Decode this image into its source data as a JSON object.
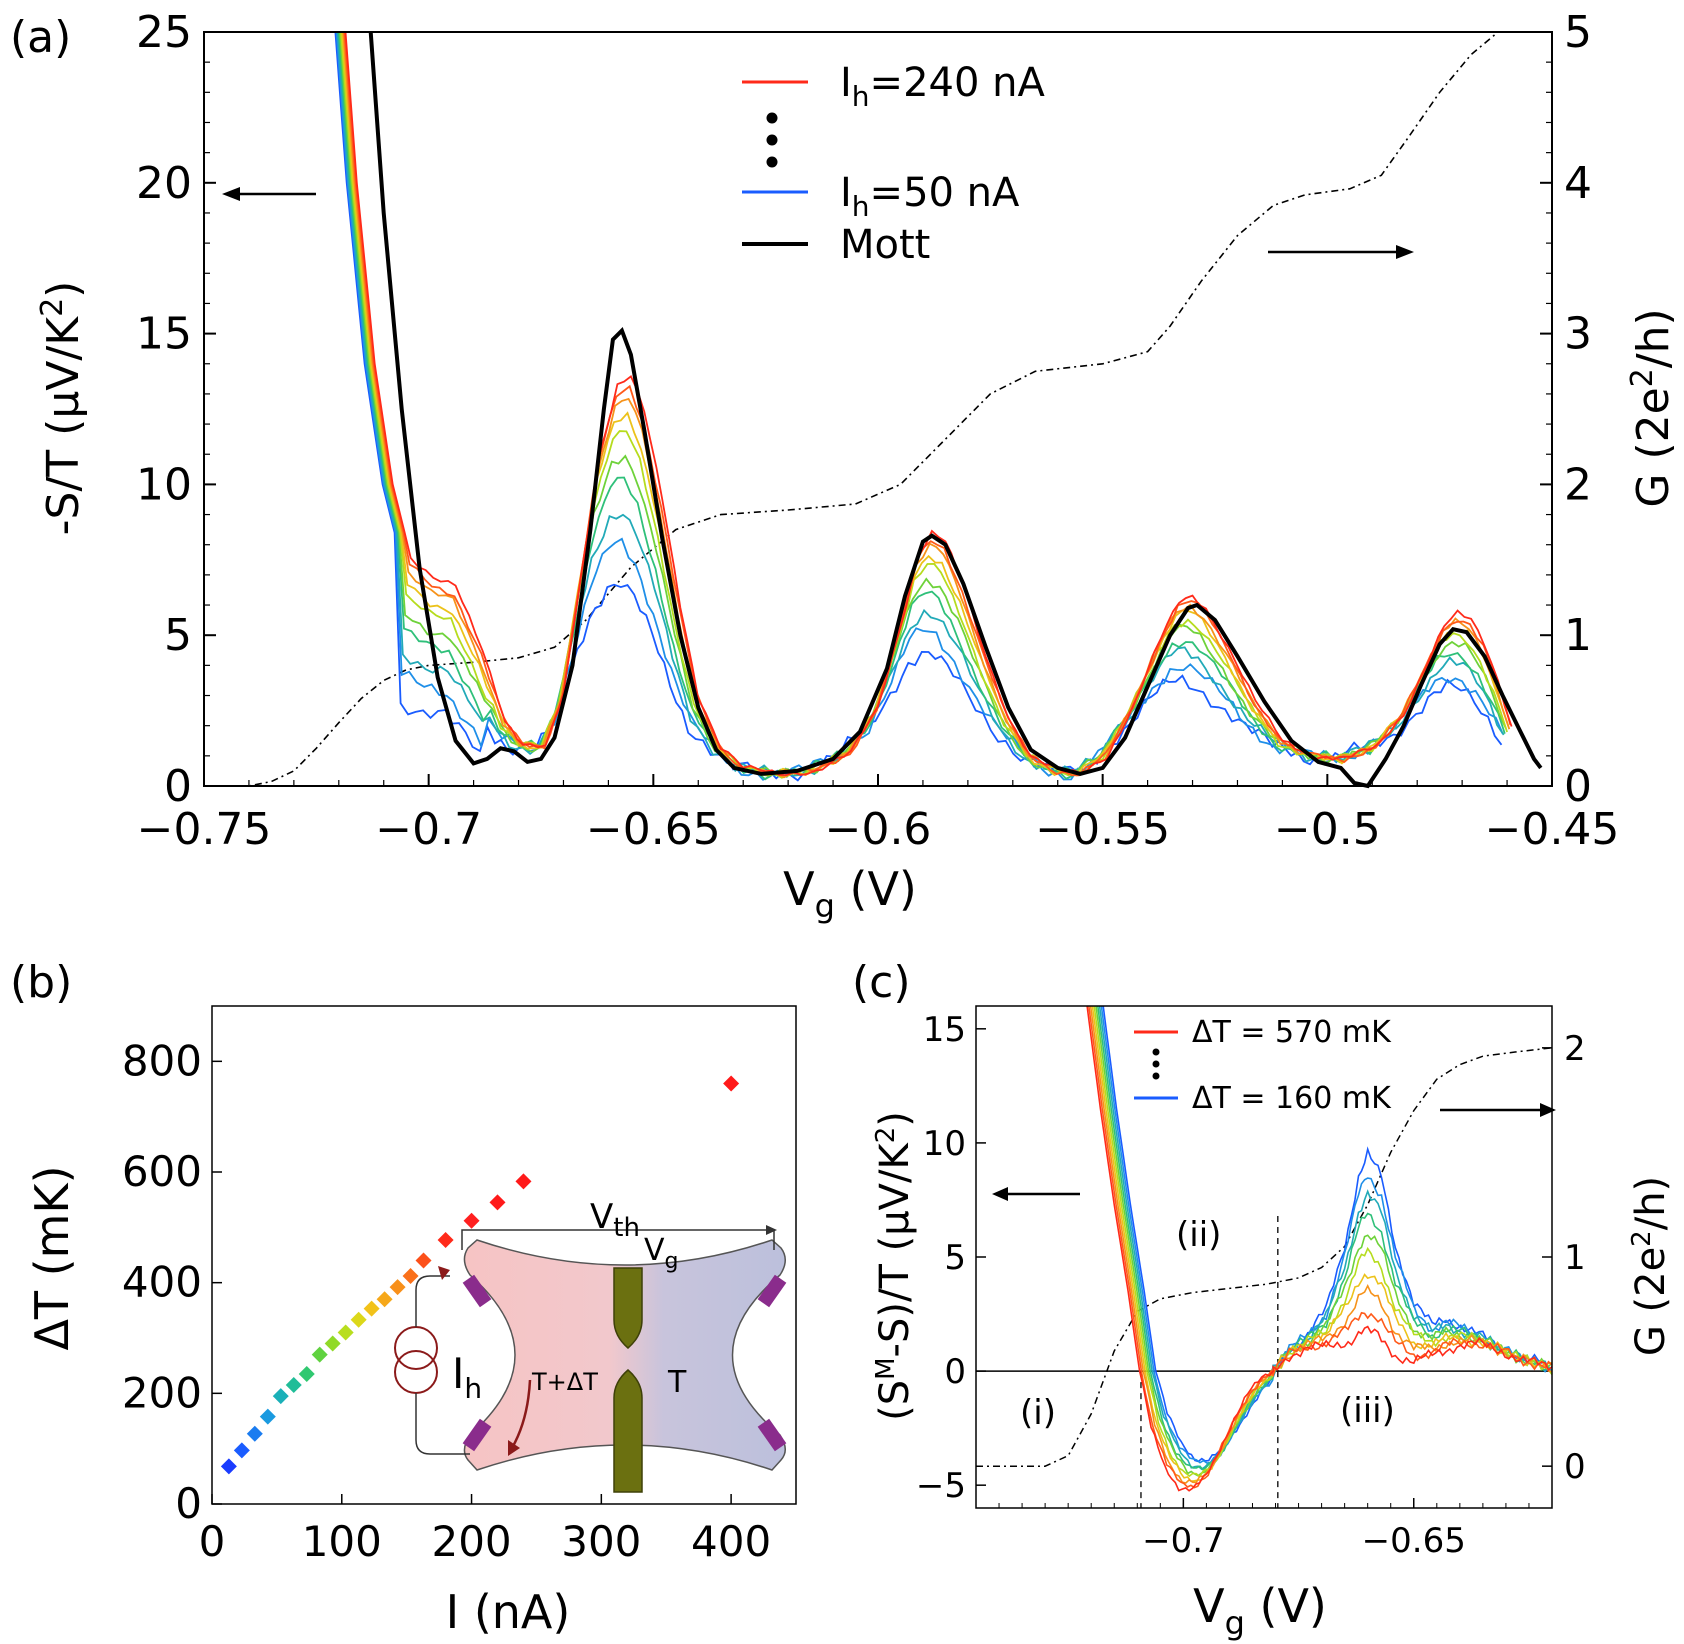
{
  "chart_data": [
    {
      "panel_label": "(a)",
      "type": "line",
      "xlabel": "V",
      "xlabel_sub": "g",
      "xlabel_unit": " (V)",
      "xlim": [
        -0.75,
        -0.45
      ],
      "ylim": [
        0,
        25
      ],
      "ylim_right": [
        0,
        5
      ],
      "xticks": [
        -0.75,
        -0.7,
        -0.65,
        -0.6,
        -0.55,
        -0.5,
        -0.45
      ],
      "xtick_labels": [
        "−0.75",
        "−0.7",
        "−0.65",
        "−0.6",
        "−0.55",
        "−0.5",
        "−0.45"
      ],
      "yticks": [
        0,
        5,
        10,
        15,
        20,
        25
      ],
      "ytick_labels": [
        "0",
        "5",
        "10",
        "15",
        "20",
        "25"
      ],
      "yticks_right": [
        0,
        1,
        2,
        3,
        4,
        5
      ],
      "ytick_labels_right": [
        "0",
        "1",
        "2",
        "3",
        "4",
        "5"
      ],
      "ylabel_left_pre": "-S/T (µV/K",
      "ylabel_left_sup": "2",
      "ylabel_left_post": ")",
      "ylabel_right_pre": "G (2e",
      "ylabel_right_sup": "2",
      "ylabel_right_post": "/h)",
      "legend": [
        {
          "prefix": "I",
          "sub": "h",
          "text": "=240 nA",
          "color": "#ff2a1a"
        },
        {
          "prefix": "I",
          "sub": "h",
          "text": "=50 nA",
          "color": "#1a5cff"
        },
        {
          "prefix": "",
          "sub": "",
          "text": "Mott",
          "color": "#000000"
        }
      ],
      "colors": [
        "#1a5cff",
        "#1f8fe8",
        "#22aab8",
        "#2fc07a",
        "#6ed23a",
        "#b6dc1e",
        "#ecc21a",
        "#f6921a",
        "#ff5a1a",
        "#ff2a1a"
      ],
      "series_scales": [
        0.45,
        0.55,
        0.64,
        0.72,
        0.79,
        0.85,
        0.9,
        0.94,
        0.97,
        1.0
      ],
      "heated_base": [
        [
          -0.7185,
          25
        ],
        [
          -0.716,
          20
        ],
        [
          -0.712,
          14
        ],
        [
          -0.708,
          10
        ],
        [
          -0.704,
          7.6
        ],
        [
          -0.699,
          6.9
        ],
        [
          -0.694,
          6.6
        ],
        [
          -0.688,
          4.5
        ],
        [
          -0.683,
          2.2
        ],
        [
          -0.679,
          1.4
        ],
        [
          -0.674,
          1.3
        ],
        [
          -0.67,
          3.0
        ],
        [
          -0.666,
          7.0
        ],
        [
          -0.662,
          11.0
        ],
        [
          -0.658,
          13.3
        ],
        [
          -0.655,
          13.6
        ],
        [
          -0.652,
          12.4
        ],
        [
          -0.648,
          9.5
        ],
        [
          -0.644,
          6.0
        ],
        [
          -0.64,
          3.0
        ],
        [
          -0.635,
          1.3
        ],
        [
          -0.63,
          0.6
        ],
        [
          -0.622,
          0.4
        ],
        [
          -0.614,
          0.5
        ],
        [
          -0.606,
          1.1
        ],
        [
          -0.6,
          2.6
        ],
        [
          -0.595,
          5.3
        ],
        [
          -0.591,
          7.7
        ],
        [
          -0.588,
          8.4
        ],
        [
          -0.585,
          8.1
        ],
        [
          -0.581,
          6.6
        ],
        [
          -0.576,
          4.3
        ],
        [
          -0.571,
          2.3
        ],
        [
          -0.566,
          1.0
        ],
        [
          -0.56,
          0.5
        ],
        [
          -0.555,
          0.4
        ],
        [
          -0.549,
          1.0
        ],
        [
          -0.543,
          2.7
        ],
        [
          -0.537,
          4.9
        ],
        [
          -0.533,
          6.1
        ],
        [
          -0.53,
          6.3
        ],
        [
          -0.527,
          5.9
        ],
        [
          -0.522,
          4.6
        ],
        [
          -0.516,
          2.8
        ],
        [
          -0.51,
          1.5
        ],
        [
          -0.503,
          1.0
        ],
        [
          -0.496,
          0.9
        ],
        [
          -0.489,
          1.3
        ],
        [
          -0.483,
          2.4
        ],
        [
          -0.478,
          4.0
        ],
        [
          -0.474,
          5.3
        ],
        [
          -0.471,
          5.7
        ],
        [
          -0.468,
          5.5
        ],
        [
          -0.465,
          4.7
        ],
        [
          -0.462,
          3.5
        ],
        [
          -0.459,
          2.0
        ]
      ],
      "mott": [
        [
          -0.7129,
          25
        ],
        [
          -0.71,
          19
        ],
        [
          -0.706,
          12.5
        ],
        [
          -0.702,
          7.2
        ],
        [
          -0.698,
          3.6
        ],
        [
          -0.694,
          1.5
        ],
        [
          -0.69,
          0.75
        ],
        [
          -0.687,
          0.9
        ],
        [
          -0.684,
          1.25
        ],
        [
          -0.681,
          1.15
        ],
        [
          -0.678,
          0.8
        ],
        [
          -0.675,
          0.9
        ],
        [
          -0.672,
          1.6
        ],
        [
          -0.668,
          4.0
        ],
        [
          -0.664,
          8.5
        ],
        [
          -0.661,
          12.5
        ],
        [
          -0.659,
          14.8
        ],
        [
          -0.657,
          15.1
        ],
        [
          -0.655,
          14.3
        ],
        [
          -0.652,
          11.8
        ],
        [
          -0.648,
          8.2
        ],
        [
          -0.644,
          5.0
        ],
        [
          -0.64,
          2.6
        ],
        [
          -0.636,
          1.2
        ],
        [
          -0.632,
          0.6
        ],
        [
          -0.626,
          0.4
        ],
        [
          -0.618,
          0.5
        ],
        [
          -0.61,
          0.9
        ],
        [
          -0.604,
          1.8
        ],
        [
          -0.598,
          3.9
        ],
        [
          -0.594,
          6.3
        ],
        [
          -0.59,
          8.1
        ],
        [
          -0.588,
          8.3
        ],
        [
          -0.585,
          8.0
        ],
        [
          -0.581,
          6.7
        ],
        [
          -0.576,
          4.6
        ],
        [
          -0.571,
          2.6
        ],
        [
          -0.566,
          1.2
        ],
        [
          -0.56,
          0.6
        ],
        [
          -0.555,
          0.4
        ],
        [
          -0.55,
          0.6
        ],
        [
          -0.545,
          1.6
        ],
        [
          -0.54,
          3.3
        ],
        [
          -0.535,
          5.0
        ],
        [
          -0.531,
          5.9
        ],
        [
          -0.529,
          6.0
        ],
        [
          -0.525,
          5.5
        ],
        [
          -0.52,
          4.3
        ],
        [
          -0.514,
          2.8
        ],
        [
          -0.508,
          1.5
        ],
        [
          -0.502,
          0.8
        ],
        [
          -0.497,
          0.6
        ],
        [
          -0.494,
          0.1
        ],
        [
          -0.491,
          0.0
        ],
        [
          -0.487,
          0.9
        ],
        [
          -0.483,
          2.0
        ],
        [
          -0.479,
          3.4
        ],
        [
          -0.475,
          4.7
        ],
        [
          -0.472,
          5.2
        ],
        [
          -0.469,
          5.1
        ],
        [
          -0.465,
          4.3
        ],
        [
          -0.461,
          3.0
        ],
        [
          -0.457,
          1.8
        ],
        [
          -0.454,
          0.9
        ],
        [
          -0.4525,
          0.6
        ]
      ],
      "conductance": [
        [
          -0.75,
          0.0
        ],
        [
          -0.74,
          0.0
        ],
        [
          -0.735,
          0.03
        ],
        [
          -0.73,
          0.1
        ],
        [
          -0.725,
          0.25
        ],
        [
          -0.72,
          0.42
        ],
        [
          -0.715,
          0.58
        ],
        [
          -0.71,
          0.7
        ],
        [
          -0.705,
          0.77
        ],
        [
          -0.7,
          0.8
        ],
        [
          -0.69,
          0.82
        ],
        [
          -0.68,
          0.85
        ],
        [
          -0.672,
          0.92
        ],
        [
          -0.665,
          1.1
        ],
        [
          -0.655,
          1.45
        ],
        [
          -0.645,
          1.7
        ],
        [
          -0.635,
          1.8
        ],
        [
          -0.62,
          1.83
        ],
        [
          -0.605,
          1.87
        ],
        [
          -0.595,
          2.0
        ],
        [
          -0.585,
          2.3
        ],
        [
          -0.575,
          2.6
        ],
        [
          -0.565,
          2.75
        ],
        [
          -0.55,
          2.8
        ],
        [
          -0.54,
          2.88
        ],
        [
          -0.535,
          3.05
        ],
        [
          -0.528,
          3.35
        ],
        [
          -0.52,
          3.65
        ],
        [
          -0.512,
          3.85
        ],
        [
          -0.505,
          3.92
        ],
        [
          -0.495,
          3.96
        ],
        [
          -0.488,
          4.05
        ],
        [
          -0.482,
          4.3
        ],
        [
          -0.475,
          4.6
        ],
        [
          -0.468,
          4.85
        ],
        [
          -0.462,
          5.0
        ]
      ]
    },
    {
      "panel_label": "(b)",
      "type": "scatter",
      "xlabel": "I (nA)",
      "ylabel": "ΔT (mK)",
      "xlim": [
        0,
        450
      ],
      "ylim": [
        0,
        900
      ],
      "xticks": [
        0,
        100,
        200,
        300,
        400
      ],
      "xtick_labels": [
        "0",
        "100",
        "200",
        "300",
        "400"
      ],
      "yticks": [
        0,
        200,
        400,
        600,
        800
      ],
      "ytick_labels": [
        "0",
        "200",
        "400",
        "600",
        "800"
      ],
      "points": [
        {
          "x": 13,
          "y": 68,
          "color": "#1a3cff"
        },
        {
          "x": 23,
          "y": 97,
          "color": "#1a5cff"
        },
        {
          "x": 33,
          "y": 127,
          "color": "#1a7cf0"
        },
        {
          "x": 43,
          "y": 158,
          "color": "#1a9ae0"
        },
        {
          "x": 53,
          "y": 195,
          "color": "#1ab0b8"
        },
        {
          "x": 63,
          "y": 215,
          "color": "#20bd98"
        },
        {
          "x": 73,
          "y": 235,
          "color": "#30c870"
        },
        {
          "x": 83,
          "y": 270,
          "color": "#60d240"
        },
        {
          "x": 93,
          "y": 290,
          "color": "#90da28"
        },
        {
          "x": 103,
          "y": 310,
          "color": "#b8de1e"
        },
        {
          "x": 113,
          "y": 333,
          "color": "#dcd81a"
        },
        {
          "x": 123,
          "y": 353,
          "color": "#f2c21a"
        },
        {
          "x": 133,
          "y": 370,
          "color": "#f6a81a"
        },
        {
          "x": 143,
          "y": 392,
          "color": "#f8901a"
        },
        {
          "x": 153,
          "y": 412,
          "color": "#fa701a"
        },
        {
          "x": 163,
          "y": 440,
          "color": "#fc501a"
        },
        {
          "x": 180,
          "y": 477,
          "color": "#ff2a1a"
        },
        {
          "x": 200,
          "y": 512,
          "color": "#ff2020"
        },
        {
          "x": 220,
          "y": 545,
          "color": "#ff1a1a"
        },
        {
          "x": 240,
          "y": 583,
          "color": "#ff1a1a"
        },
        {
          "x": 400,
          "y": 760,
          "color": "#ff1a1a"
        }
      ],
      "inset": {
        "vth_main": "V",
        "vth_sub": "th",
        "vg_main": "V",
        "vg_sub": "g",
        "ih_main": "I",
        "ih_sub": "h",
        "hot_label": "T+ΔT",
        "cold_label": "T"
      }
    },
    {
      "panel_label": "(c)",
      "type": "line",
      "xlabel": "V",
      "xlabel_sub": "g",
      "xlabel_unit": " (V)",
      "xlim": [
        -0.745,
        -0.62
      ],
      "ylim": [
        -6,
        16
      ],
      "ylim_right": [
        -0.2,
        2.2
      ],
      "xticks": [
        -0.7,
        -0.65
      ],
      "xtick_labels": [
        "−0.7",
        "−0.65"
      ],
      "yticks": [
        -5,
        0,
        5,
        10,
        15
      ],
      "ytick_labels": [
        "−5",
        "0",
        "5",
        "10",
        "15"
      ],
      "yticks_right": [
        0,
        1,
        2
      ],
      "ytick_labels_right": [
        "0",
        "1",
        "2"
      ],
      "ylabel_left_pre": "(S",
      "ylabel_left_sup_M": "M",
      "ylabel_left_mid": "-S)/T (µV/K",
      "ylabel_left_sup": "2",
      "ylabel_left_post": ")",
      "ylabel_right_pre": "G (2e",
      "ylabel_right_sup": "2",
      "ylabel_right_post": "/h)",
      "legend": [
        {
          "text": "ΔT = 570 mK",
          "color": "#ff2a1a"
        },
        {
          "text": "ΔT = 160 mK",
          "color": "#1a5cff"
        }
      ],
      "region_labels": [
        "(i)",
        "(ii)",
        "(iii)"
      ],
      "dashed_x": [
        -0.7092,
        -0.6795
      ],
      "colors": [
        "#1a5cff",
        "#1f8fe8",
        "#22aab8",
        "#2fc07a",
        "#6ed23a",
        "#b6dc1e",
        "#ecc21a",
        "#f6921a",
        "#ff5a1a",
        "#ff2a1a"
      ],
      "left_base": [
        [
          -0.7209,
          16
        ],
        [
          -0.718,
          11.5
        ],
        [
          -0.715,
          7.3
        ],
        [
          -0.712,
          3.5
        ],
        [
          -0.7095,
          0.0
        ],
        [
          -0.707,
          -2.5
        ],
        [
          -0.704,
          -4.2
        ],
        [
          -0.701,
          -5.1
        ],
        [
          -0.698,
          -5.2
        ],
        [
          -0.695,
          -4.6
        ],
        [
          -0.692,
          -3.4
        ],
        [
          -0.689,
          -2.1
        ],
        [
          -0.686,
          -1.0
        ],
        [
          -0.683,
          -0.3
        ],
        [
          -0.6805,
          0.0
        ]
      ],
      "right_red": [
        [
          -0.6805,
          0.0
        ],
        [
          -0.677,
          0.7
        ],
        [
          -0.673,
          1.0
        ],
        [
          -0.668,
          1.1
        ],
        [
          -0.664,
          1.3
        ],
        [
          -0.661,
          1.8
        ],
        [
          -0.658,
          1.6
        ],
        [
          -0.654,
          0.7
        ],
        [
          -0.65,
          0.4
        ],
        [
          -0.646,
          0.7
        ],
        [
          -0.641,
          1.1
        ],
        [
          -0.636,
          1.2
        ],
        [
          -0.631,
          0.9
        ],
        [
          -0.627,
          0.5
        ],
        [
          -0.623,
          0.3
        ],
        [
          -0.62,
          0.2
        ]
      ],
      "right_blue": [
        [
          -0.6805,
          0.0
        ],
        [
          -0.677,
          1.0
        ],
        [
          -0.673,
          1.6
        ],
        [
          -0.669,
          2.7
        ],
        [
          -0.665,
          5.5
        ],
        [
          -0.662,
          8.5
        ],
        [
          -0.66,
          9.5
        ],
        [
          -0.657,
          8.5
        ],
        [
          -0.654,
          5.5
        ],
        [
          -0.65,
          3.0
        ],
        [
          -0.646,
          2.0
        ],
        [
          -0.643,
          2.3
        ],
        [
          -0.639,
          1.9
        ],
        [
          -0.635,
          1.5
        ],
        [
          -0.631,
          1.0
        ],
        [
          -0.627,
          0.6
        ],
        [
          -0.623,
          0.4
        ],
        [
          -0.62,
          0.0
        ]
      ],
      "conductance": [
        [
          -0.745,
          0.0
        ],
        [
          -0.73,
          0.0
        ],
        [
          -0.725,
          0.05
        ],
        [
          -0.72,
          0.25
        ],
        [
          -0.715,
          0.55
        ],
        [
          -0.71,
          0.74
        ],
        [
          -0.705,
          0.8
        ],
        [
          -0.698,
          0.83
        ],
        [
          -0.69,
          0.85
        ],
        [
          -0.682,
          0.87
        ],
        [
          -0.675,
          0.9
        ],
        [
          -0.67,
          0.95
        ],
        [
          -0.665,
          1.05
        ],
        [
          -0.66,
          1.25
        ],
        [
          -0.655,
          1.5
        ],
        [
          -0.65,
          1.7
        ],
        [
          -0.645,
          1.85
        ],
        [
          -0.64,
          1.92
        ],
        [
          -0.635,
          1.96
        ],
        [
          -0.628,
          1.98
        ],
        [
          -0.62,
          2.0
        ]
      ]
    }
  ]
}
